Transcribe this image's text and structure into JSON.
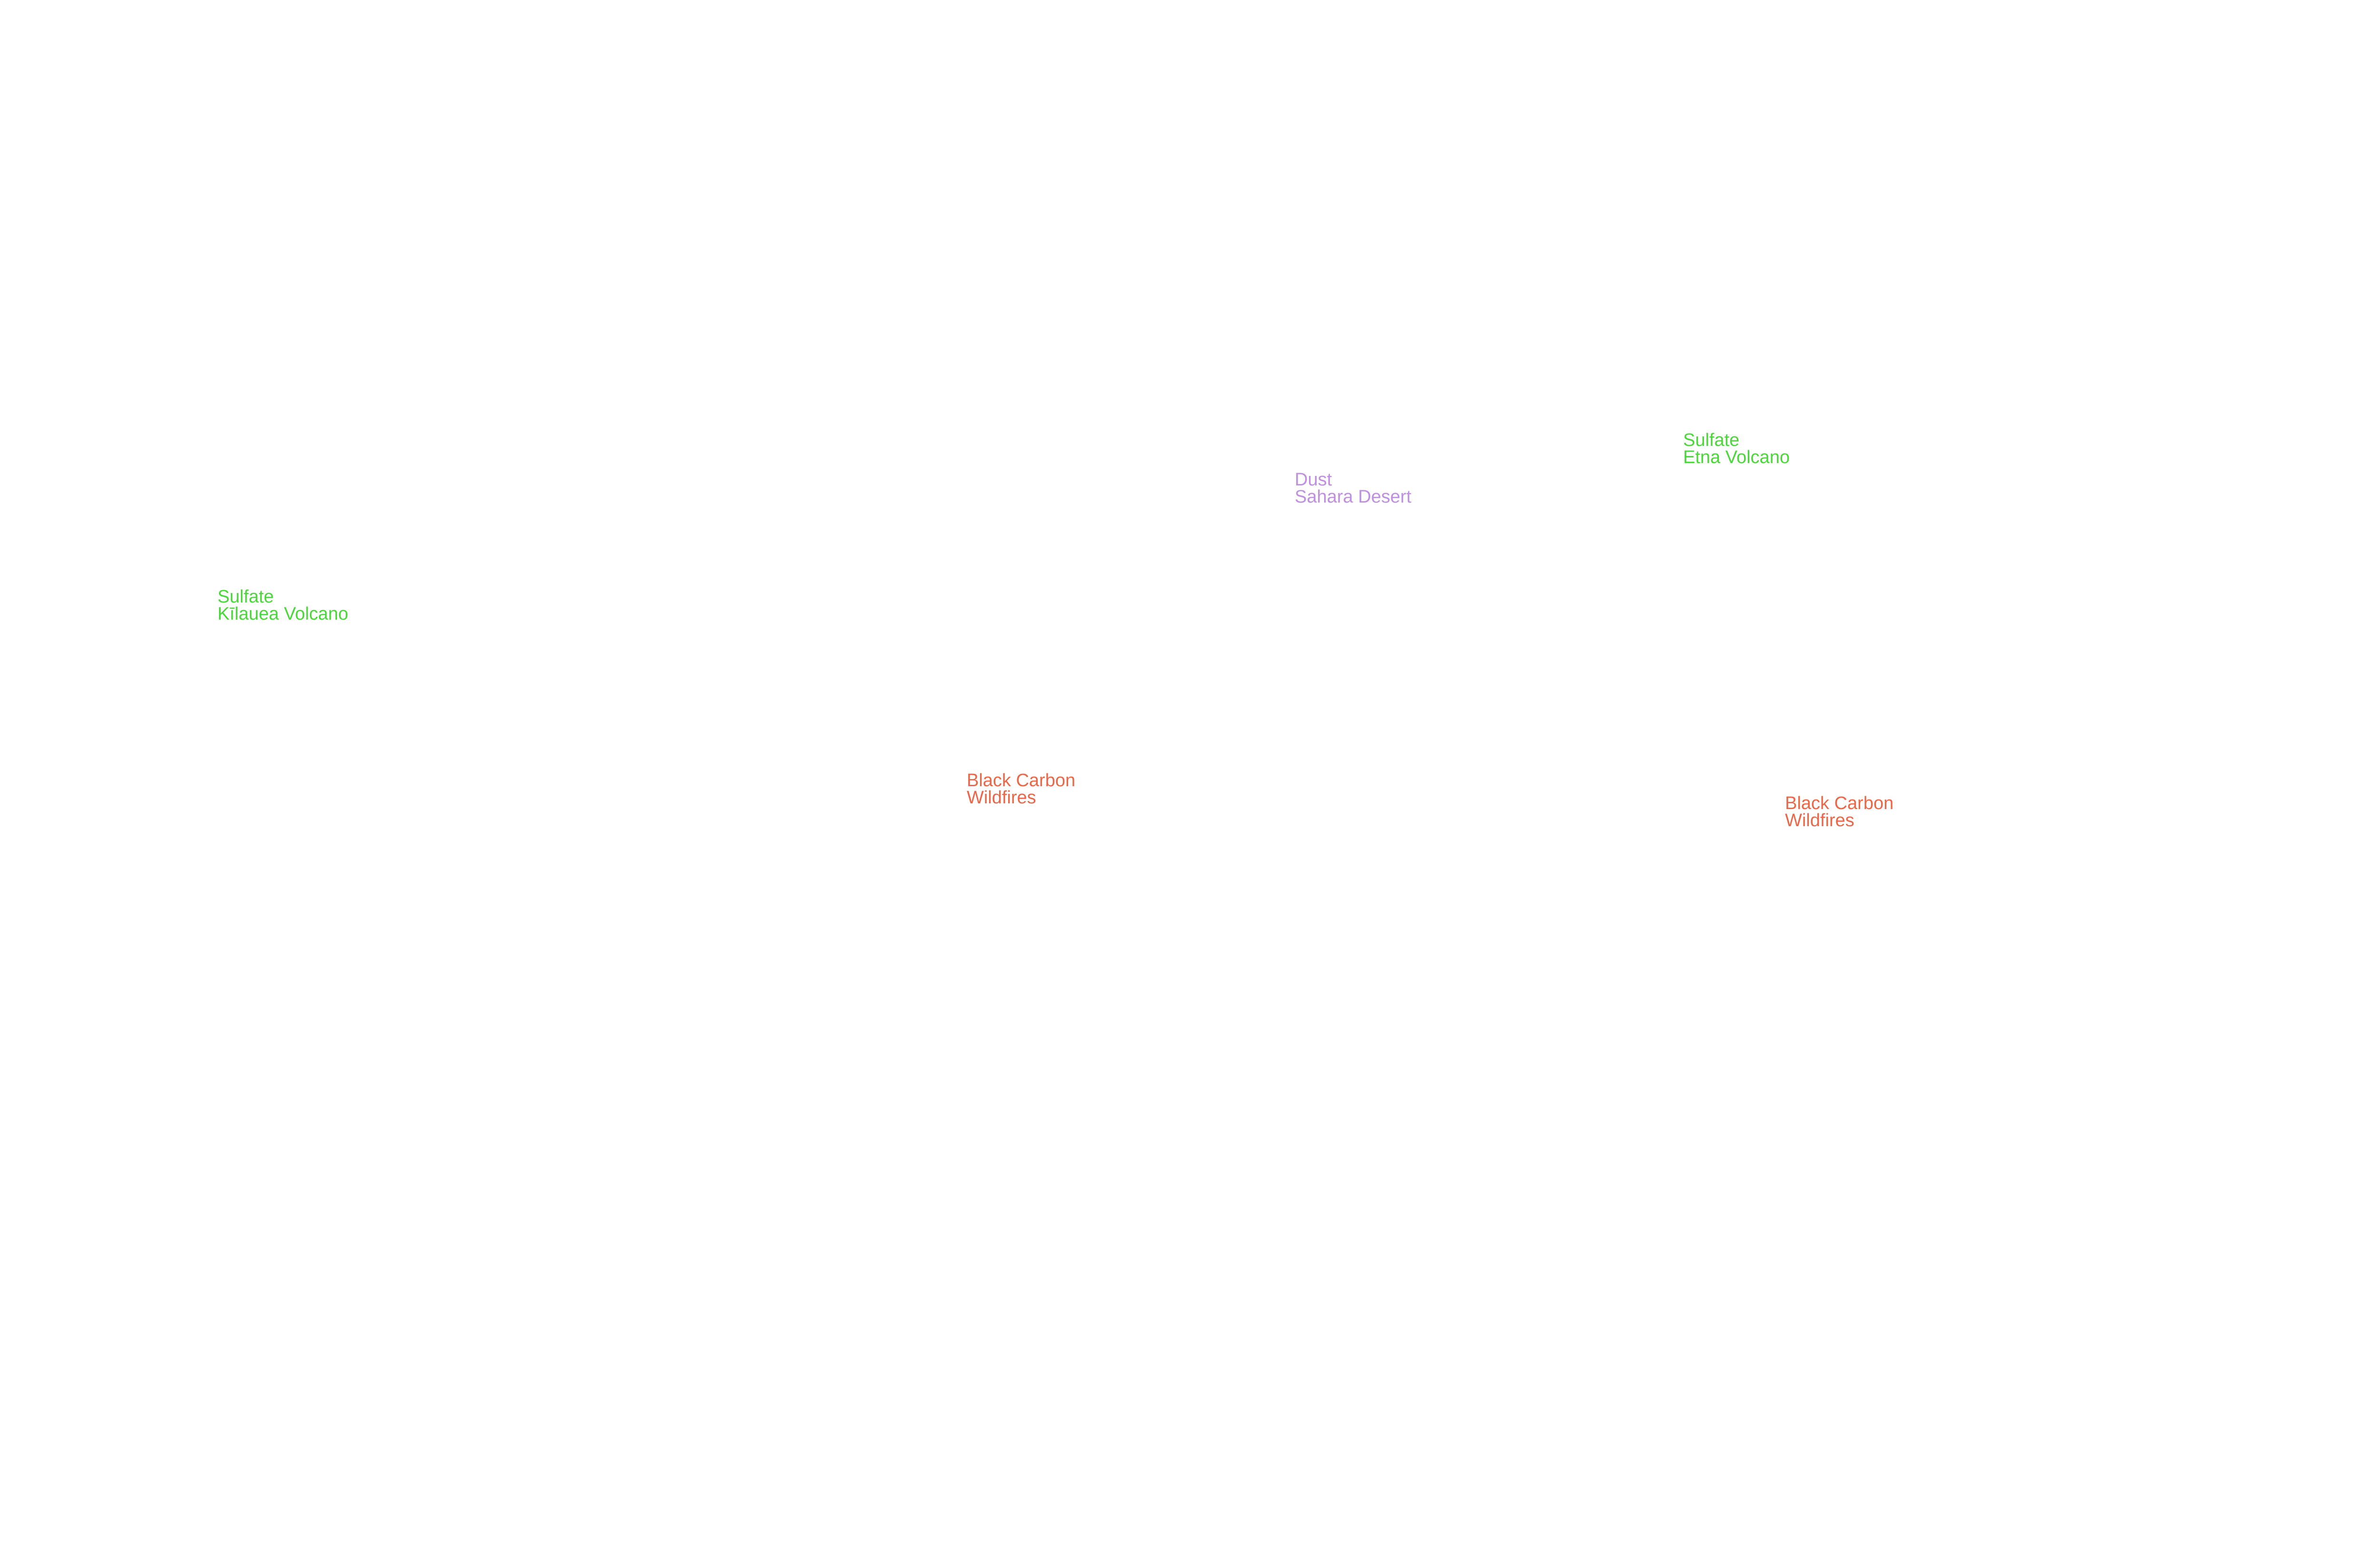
{
  "map": {
    "markers": [
      {
        "type": "Sulfate",
        "source": "Kīlauea Volcano",
        "color": "#4cd63c"
      },
      {
        "type": "Dust",
        "source": "Sahara Desert",
        "color": "#c090e0"
      },
      {
        "type": "Sulfate",
        "source": "Etna Volcano",
        "color": "#4cd63c"
      },
      {
        "type": "Black Carbon",
        "source": "Wildfires",
        "color": "#e8684a"
      },
      {
        "type": "Black Carbon",
        "source": "Wildfires",
        "color": "#e8684a"
      }
    ]
  }
}
